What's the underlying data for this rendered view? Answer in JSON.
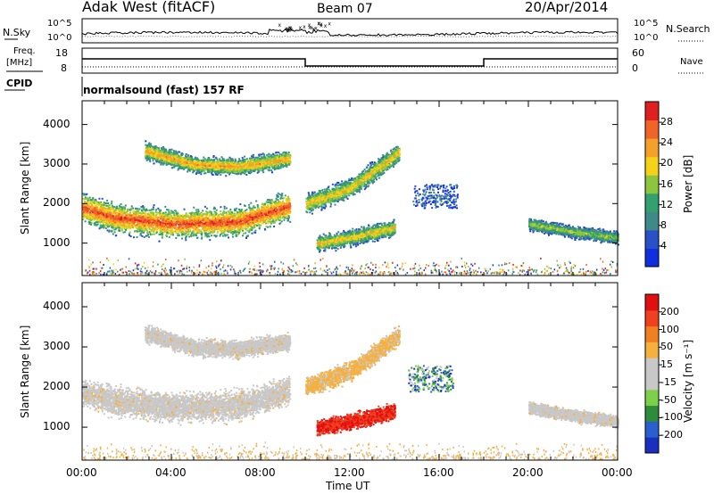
{
  "header": {
    "station": "Adak West (fitACF)",
    "beam": "Beam 07",
    "date": "20/Apr/2014"
  },
  "top_panels": {
    "nsky_label": "N.Sky",
    "nsky_ticks": [
      "10^5",
      "10^0"
    ],
    "nsearch_label": "N.Search",
    "nsearch_ticks": [
      "10^5",
      "10^0"
    ],
    "freq_label": "Freq.",
    "freq_unit": "[MHz]",
    "freq_ticks": [
      "18",
      "8"
    ],
    "nave_label": "Nave",
    "nave_ticks": [
      "60",
      "0"
    ],
    "cpid_label": "CPID",
    "cpid_value": "normalsound (fast) 157 RF"
  },
  "colors": {
    "power_scale": [
      "#1030e0",
      "#2a50c8",
      "#3f8a88",
      "#33a070",
      "#8cc63f",
      "#f5d21a",
      "#f5a02a",
      "#f06428",
      "#e02020"
    ],
    "velocity_scale": [
      "#1a2fc0",
      "#2a5fd0",
      "#2e8b3a",
      "#7cd04a",
      "#c8c8c8",
      "#c8c8c8",
      "#f5b040",
      "#f08020",
      "#f04020",
      "#e01010"
    ]
  },
  "chart_data": [
    {
      "type": "heatmap",
      "panel": "power",
      "ylabel": "Slant Range [km]",
      "xlabel": "Time UT",
      "x_ticks": [
        "00:00",
        "04:00",
        "08:00",
        "12:00",
        "16:00",
        "20:00",
        "00:00"
      ],
      "x_hours": [
        0,
        4,
        8,
        12,
        16,
        20,
        24
      ],
      "xlim": [
        0,
        24
      ],
      "ylim": [
        180,
        4600
      ],
      "y_ticks": [
        1000,
        2000,
        3000,
        4000
      ],
      "colorbar_label": "Power [dB]",
      "colorbar_ticks": [
        "28",
        "24",
        "20",
        "16",
        "12",
        "8",
        "4"
      ],
      "colorbar_range": [
        0,
        30
      ],
      "echo_bands": [
        {
          "t": [
            0,
            1.5,
            4,
            7,
            9.3
          ],
          "r": [
            1900,
            1650,
            1500,
            1550,
            1950
          ],
          "w": 480,
          "peak": 27
        },
        {
          "t": [
            2.8,
            5,
            7,
            9.3
          ],
          "r": [
            3350,
            3000,
            2950,
            3150
          ],
          "w": 280,
          "peak": 22
        },
        {
          "t": [
            10,
            12,
            14.2
          ],
          "r": [
            2000,
            2400,
            3300
          ],
          "w": 320,
          "peak": 20
        },
        {
          "t": [
            10.5,
            12,
            14
          ],
          "r": [
            1000,
            1150,
            1400
          ],
          "w": 260,
          "peak": 20
        },
        {
          "t": [
            20,
            22,
            24
          ],
          "r": [
            1500,
            1300,
            1150
          ],
          "w": 200,
          "peak": 16
        }
      ]
    },
    {
      "type": "heatmap",
      "panel": "velocity",
      "ylabel": "Slant Range [km]",
      "xlabel": "Time UT",
      "x_ticks": [
        "00:00",
        "04:00",
        "08:00",
        "12:00",
        "16:00",
        "20:00",
        "00:00"
      ],
      "x_hours": [
        0,
        4,
        8,
        12,
        16,
        20,
        24
      ],
      "xlim": [
        0,
        24
      ],
      "ylim": [
        180,
        4600
      ],
      "y_ticks": [
        1000,
        2000,
        3000,
        4000
      ],
      "colorbar_label": "Velocity [m s⁻¹]",
      "colorbar_ticks": [
        "200",
        "100",
        "50",
        "15",
        "-15",
        "-50",
        "-100",
        "-200"
      ],
      "colorbar_range": [
        -250,
        250
      ]
    }
  ]
}
